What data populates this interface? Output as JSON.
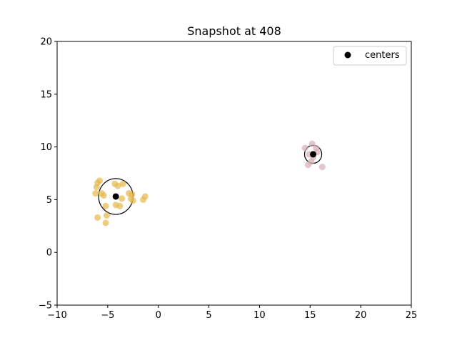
{
  "chart_data": {
    "type": "scatter",
    "title": "Snapshot at 408",
    "xlabel": "",
    "ylabel": "",
    "xlim": [
      -10,
      25
    ],
    "ylim": [
      -5,
      20
    ],
    "xticks": [
      -10,
      -5,
      0,
      5,
      10,
      15,
      20,
      25
    ],
    "yticks": [
      -5,
      0,
      5,
      10,
      15,
      20
    ],
    "grid": false,
    "legend": {
      "placement": "top-right",
      "entries": [
        "centers"
      ]
    },
    "series": [
      {
        "color": "#e6b84a",
        "points": [
          [
            -5.8,
            6.8
          ],
          [
            -6.0,
            6.6
          ],
          [
            -6.1,
            6.2
          ],
          [
            -6.2,
            5.6
          ],
          [
            -5.6,
            5.6
          ],
          [
            -5.4,
            5.4
          ],
          [
            -4.3,
            6.5
          ],
          [
            -4.0,
            6.3
          ],
          [
            -3.5,
            6.5
          ],
          [
            -2.9,
            5.6
          ],
          [
            -2.6,
            5.5
          ],
          [
            -2.7,
            5.1
          ],
          [
            -2.5,
            4.9
          ],
          [
            -3.6,
            5.1
          ],
          [
            -1.5,
            5.0
          ],
          [
            -1.3,
            5.3
          ],
          [
            -5.2,
            4.4
          ],
          [
            -4.2,
            4.5
          ],
          [
            -3.8,
            4.4
          ],
          [
            -5.1,
            3.5
          ],
          [
            -6.0,
            3.3
          ],
          [
            -5.2,
            2.8
          ]
        ]
      },
      {
        "color": "#d4aeb6",
        "points": [
          [
            14.5,
            9.9
          ],
          [
            15.2,
            10.3
          ],
          [
            15.6,
            9.9
          ],
          [
            14.9,
            9.3
          ],
          [
            15.3,
            9.0
          ],
          [
            15.7,
            9.5
          ],
          [
            15.1,
            8.6
          ],
          [
            14.8,
            8.3
          ],
          [
            16.2,
            8.1
          ]
        ]
      },
      {
        "name": "centers",
        "color": "#000000",
        "points": [
          [
            -4.2,
            5.3
          ],
          [
            15.3,
            9.3
          ]
        ]
      }
    ],
    "circles": [
      {
        "center": [
          -4.2,
          5.3
        ],
        "radius": 1.7
      },
      {
        "center": [
          15.3,
          9.3
        ],
        "radius": 0.85
      }
    ]
  }
}
